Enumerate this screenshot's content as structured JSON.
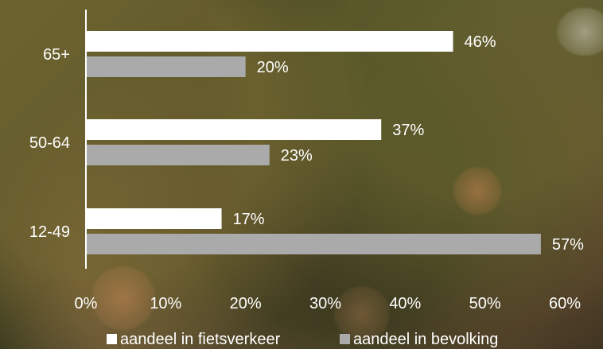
{
  "chart_data": {
    "type": "bar",
    "orientation": "horizontal",
    "categories": [
      "65+",
      "50-64",
      "12-49"
    ],
    "series": [
      {
        "name": "aandeel in fietsverkeer",
        "values": [
          46,
          37,
          17
        ],
        "color": "#ffffff"
      },
      {
        "name": "aandeel in bevolking",
        "values": [
          20,
          23,
          57
        ],
        "color": "#aaaaaa"
      }
    ],
    "data_labels": [
      [
        "46%",
        "20%"
      ],
      [
        "37%",
        "23%"
      ],
      [
        "17%",
        "57%"
      ]
    ],
    "x_ticks": [
      {
        "value": 0,
        "label": "0%"
      },
      {
        "value": 10,
        "label": "10%"
      },
      {
        "value": 20,
        "label": "20%"
      },
      {
        "value": 30,
        "label": "30%"
      },
      {
        "value": 40,
        "label": "40%"
      },
      {
        "value": 50,
        "label": "50%"
      },
      {
        "value": 60,
        "label": "60%"
      }
    ],
    "xlim": [
      0,
      60
    ],
    "grid": false,
    "legend_position": "bottom"
  }
}
